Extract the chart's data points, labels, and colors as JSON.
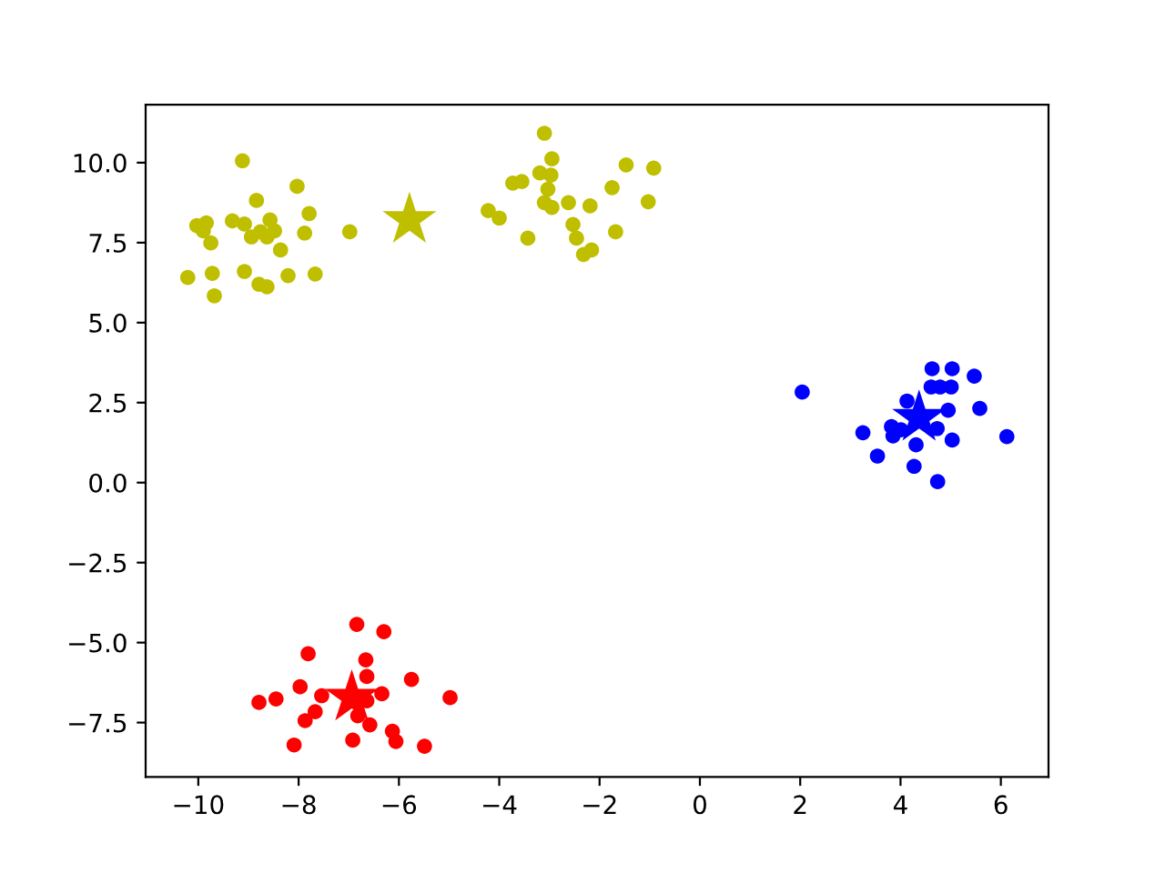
{
  "chart_data": {
    "type": "scatter",
    "xlim": [
      -11.05,
      6.95
    ],
    "ylim": [
      -9.2,
      11.81
    ],
    "xticks": [
      {
        "value": -10,
        "label": "−10"
      },
      {
        "value": -8,
        "label": "−8"
      },
      {
        "value": -6,
        "label": "−6"
      },
      {
        "value": -4,
        "label": "−4"
      },
      {
        "value": -2,
        "label": "−2"
      },
      0,
      2,
      4,
      6
    ],
    "yticks": [
      {
        "value": -7.5,
        "label": "−7.5"
      },
      {
        "value": -5,
        "label": "−5.0"
      },
      {
        "value": -2.5,
        "label": "−2.5"
      },
      {
        "value": 0,
        "label": "0.0"
      },
      {
        "value": 2.5,
        "label": "2.5"
      },
      {
        "value": 5,
        "label": "5.0"
      },
      {
        "value": 7.5,
        "label": "7.5"
      },
      {
        "value": 10,
        "label": "10.0"
      }
    ],
    "grid": false,
    "legend": false,
    "series": [
      {
        "color": "#bfbf00",
        "marker": "circle",
        "x": [
          -9.12,
          -8.03,
          -8.84,
          -7.79,
          -10.03,
          -9.84,
          -9.9,
          -9.75,
          -9.32,
          -9.08,
          -8.94,
          -8.76,
          -8.57,
          -8.48,
          -8.63,
          -8.36,
          -7.88,
          -6.98,
          -10.21,
          -9.72,
          -9.68,
          -9.08,
          -8.79,
          -8.63,
          -8.21,
          -7.67,
          -3.1,
          -2.95,
          -3.19,
          -2.97,
          -3.73,
          -3.55,
          -3.03,
          -3.1,
          -2.95,
          -2.62,
          -2.19,
          -1.47,
          -0.92,
          -1.75,
          -1.03,
          -4.22,
          -4.0,
          -3.43,
          -2.53,
          -2.46,
          -2.32,
          -2.16,
          -1.68
        ],
        "values": [
          10.06,
          9.26,
          8.82,
          8.41,
          8.03,
          8.12,
          7.87,
          7.49,
          8.18,
          8.08,
          7.68,
          7.84,
          8.21,
          7.87,
          7.68,
          7.27,
          7.8,
          7.84,
          6.41,
          6.54,
          5.84,
          6.6,
          6.2,
          6.12,
          6.47,
          6.52,
          10.92,
          10.12,
          9.68,
          9.61,
          9.36,
          9.41,
          9.17,
          8.75,
          8.6,
          8.75,
          8.65,
          9.93,
          9.83,
          9.22,
          8.78,
          8.5,
          8.27,
          7.64,
          8.07,
          7.64,
          7.13,
          7.27,
          7.84
        ]
      },
      {
        "color": "#0000ff",
        "marker": "circle",
        "x": [
          2.04,
          4.63,
          5.03,
          5.47,
          4.61,
          4.79,
          5.01,
          4.13,
          4.49,
          4.95,
          5.58,
          3.82,
          4.01,
          4.29,
          4.55,
          4.73,
          3.25,
          3.85,
          5.03,
          6.12,
          4.31,
          3.54,
          4.27,
          4.74
        ],
        "values": [
          2.83,
          3.56,
          3.56,
          3.33,
          2.99,
          2.99,
          2.99,
          2.55,
          null,
          2.26,
          2.32,
          1.75,
          1.65,
          null,
          null,
          1.69,
          1.56,
          1.46,
          1.33,
          1.44,
          1.18,
          0.83,
          0.51,
          0.03
        ]
      },
      {
        "color": "#ff0000",
        "marker": "circle",
        "x": [
          -6.84,
          -6.3,
          -7.81,
          -6.66,
          -6.64,
          -5.75,
          -7.97,
          -7.54,
          -6.34,
          -8.79,
          -8.45,
          -4.98,
          -7.67,
          -7.87,
          -6.58,
          -6.82,
          -6.13,
          -6.06,
          -6.92,
          -8.09,
          -5.49,
          -6.64,
          null
        ],
        "values": [
          -4.43,
          -4.66,
          -5.35,
          -5.54,
          -6.06,
          -6.15,
          -6.38,
          -6.66,
          -6.6,
          -6.87,
          -6.76,
          -6.72,
          -7.16,
          -7.44,
          -7.57,
          -7.29,
          -7.77,
          -8.09,
          -8.05,
          -8.2,
          -8.24,
          -6.82,
          null
        ]
      },
      {
        "color": "#bfbf00",
        "marker": "star",
        "x": [
          -5.79
        ],
        "values": [
          8.21
        ]
      },
      {
        "color": "#0000ff",
        "marker": "star",
        "x": [
          4.37
        ],
        "values": [
          2.03
        ]
      },
      {
        "color": "#ff0000",
        "marker": "star",
        "x": [
          -6.94
        ],
        "values": [
          -6.72
        ]
      }
    ]
  }
}
